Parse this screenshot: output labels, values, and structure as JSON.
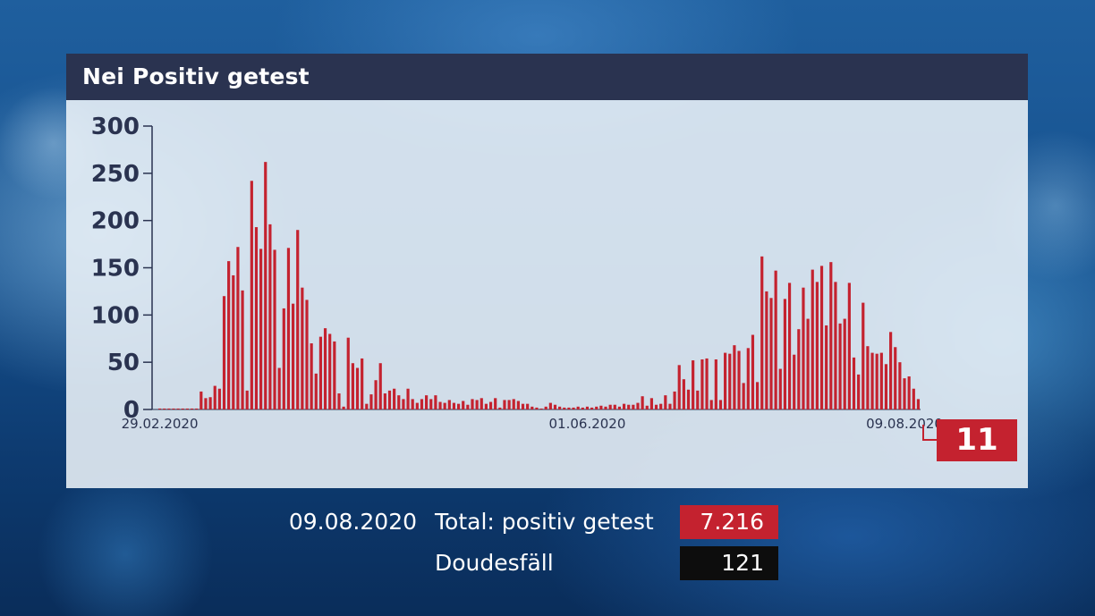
{
  "chart_data": {
    "type": "bar",
    "title": "Nei Positiv getest",
    "xlabel": "",
    "ylabel": "",
    "ylim": [
      0,
      300
    ],
    "yticks": [
      0,
      50,
      100,
      150,
      200,
      250,
      300
    ],
    "xtick_labels": [
      {
        "index": 0,
        "label": "29.02.2020"
      },
      {
        "index": 93,
        "label": "01.06.2020"
      },
      {
        "index": 162,
        "label": "09.08.2020"
      }
    ],
    "series_color": "#c4222f",
    "latest_value": "11",
    "values": [
      1,
      1,
      1,
      1,
      1,
      1,
      1,
      1,
      1,
      19,
      12,
      13,
      25,
      22,
      120,
      157,
      142,
      172,
      126,
      20,
      242,
      193,
      170,
      262,
      196,
      169,
      44,
      107,
      171,
      112,
      190,
      129,
      116,
      70,
      38,
      77,
      86,
      80,
      72,
      17,
      3,
      76,
      49,
      44,
      54,
      6,
      16,
      31,
      49,
      17,
      20,
      22,
      15,
      11,
      22,
      11,
      7,
      11,
      15,
      11,
      15,
      8,
      7,
      10,
      7,
      6,
      9,
      5,
      11,
      10,
      12,
      6,
      8,
      12,
      2,
      10,
      10,
      11,
      9,
      6,
      6,
      3,
      2,
      1,
      3,
      7,
      5,
      3,
      2,
      2,
      2,
      3,
      2,
      3,
      2,
      3,
      4,
      3,
      5,
      5,
      3,
      6,
      5,
      5,
      7,
      14,
      4,
      12,
      5,
      6,
      15,
      6,
      19,
      47,
      32,
      21,
      52,
      20,
      53,
      54,
      10,
      53,
      10,
      60,
      59,
      68,
      62,
      28,
      65,
      79,
      29,
      162,
      125,
      118,
      147,
      43,
      117,
      134,
      58,
      85,
      129,
      96,
      148,
      135,
      152,
      89,
      156,
      135,
      91,
      96,
      134,
      55,
      37,
      113,
      67,
      60,
      59,
      60,
      48,
      82,
      66,
      50,
      33,
      35,
      22,
      11
    ]
  },
  "summary": {
    "date": "09.08.2020",
    "total_label": "Total: positiv getest",
    "total_value": "7.216",
    "deaths_label": "Doudesfäll",
    "deaths_value": "121"
  }
}
